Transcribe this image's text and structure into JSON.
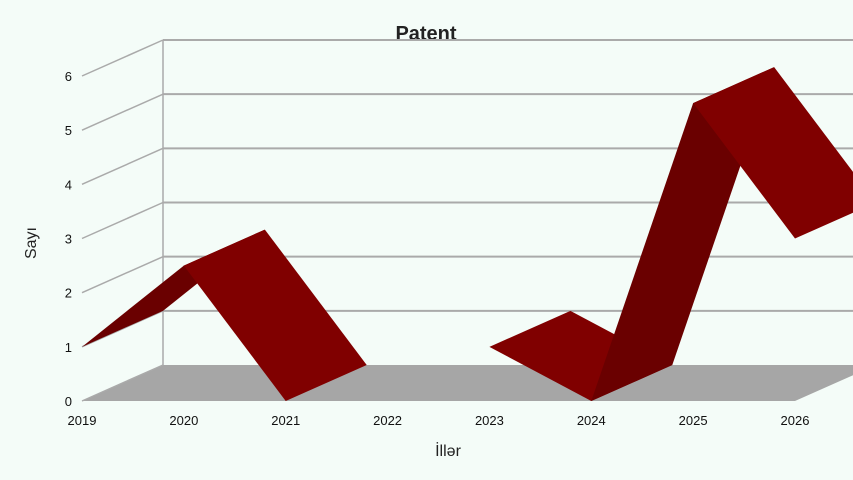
{
  "chart_data": {
    "type": "line",
    "style": "3d-ribbon",
    "title": "Patent",
    "xlabel": "İllər",
    "ylabel": "Sayı",
    "categories": [
      "2019",
      "2020",
      "2021",
      "2022",
      "2023",
      "2024",
      "2025",
      "2026"
    ],
    "series": [
      {
        "name": "",
        "values": [
          1,
          2.5,
          0,
          null,
          1,
          0,
          5.5,
          3
        ]
      }
    ],
    "y_ticks": [
      0,
      1,
      2,
      3,
      4,
      5,
      6
    ],
    "ylim": [
      0,
      6
    ],
    "grid": true,
    "colors": {
      "ribbon_front": "#800000",
      "ribbon_side": "#6a0000",
      "floor": "#a6a6a6",
      "grid": "#aaaaaa",
      "background": "#f4fcf8"
    }
  }
}
